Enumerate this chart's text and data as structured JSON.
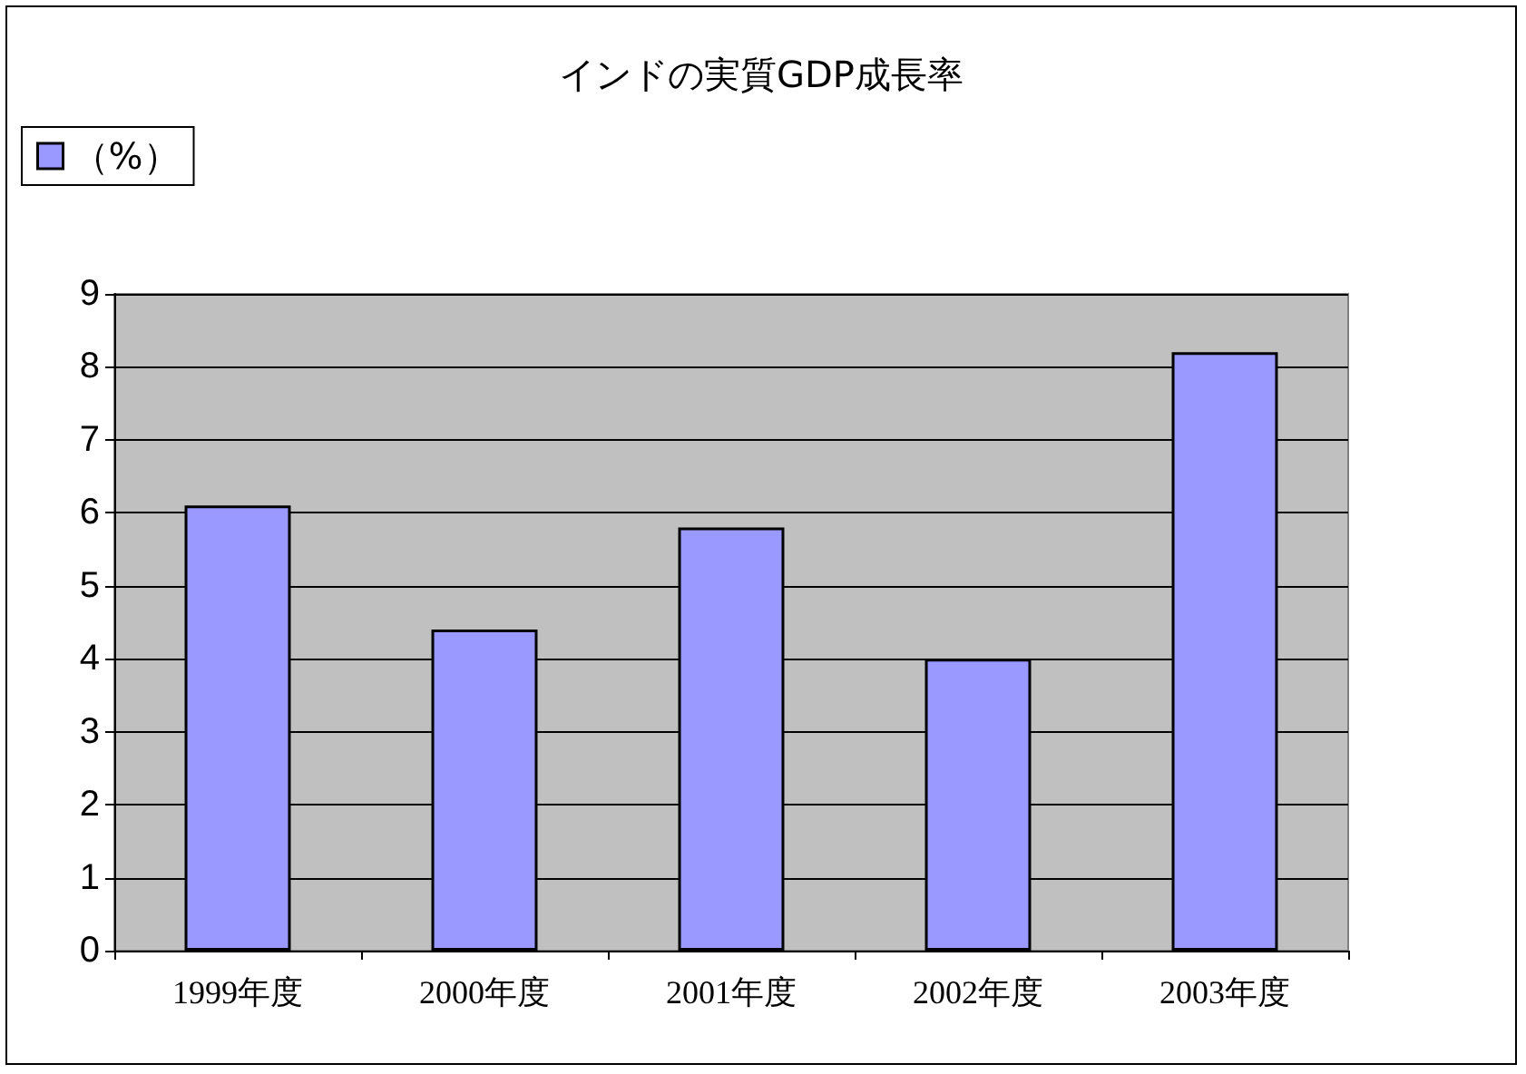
{
  "chart_data": {
    "type": "bar",
    "title": "インドの実質GDP成長率",
    "categories": [
      "1999年度",
      "2000年度",
      "2001年度",
      "2002年度",
      "2003年度"
    ],
    "series": [
      {
        "name": "（%）",
        "color": "#9999ff",
        "values": [
          6.1,
          4.4,
          5.8,
          4.0,
          8.2
        ]
      }
    ],
    "ylim": [
      0,
      9
    ],
    "yticks": [
      0,
      1,
      2,
      3,
      4,
      5,
      6,
      7,
      8,
      9
    ],
    "grid": "y",
    "legend": "top left"
  }
}
